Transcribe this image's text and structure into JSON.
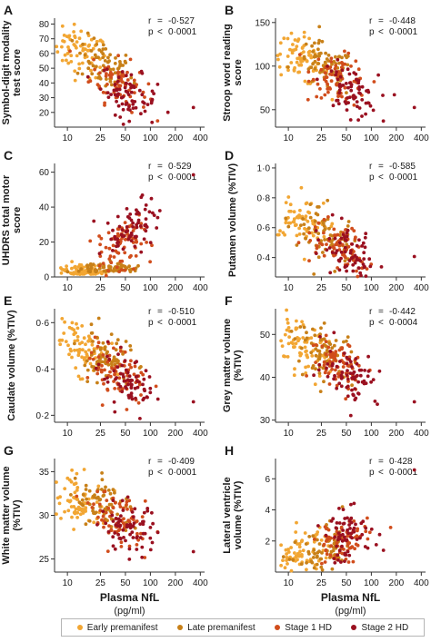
{
  "colors": {
    "early": "#f2a633",
    "late": "#c88018",
    "stage1": "#d14d1c",
    "stage2": "#9a1020"
  },
  "legend": [
    {
      "key": "early",
      "label": "Early premanifest"
    },
    {
      "key": "late",
      "label": "Late premanifest"
    },
    {
      "key": "stage1",
      "label": "Stage 1 HD"
    },
    {
      "key": "stage2",
      "label": "Stage 2 HD"
    }
  ],
  "shared_x": {
    "label": "Plasma NfL",
    "unit": "(pg/ml)",
    "scale": "log",
    "ticks": [
      10,
      25,
      50,
      100,
      200,
      400
    ],
    "tick_labels": [
      "10",
      "25",
      "50",
      "100",
      "200",
      "400"
    ],
    "xlim": [
      7,
      450
    ]
  },
  "chart_data": [
    {
      "panel": "A",
      "type": "scatter",
      "ylabel": "Symbol-digit modality test score",
      "ylim": [
        10,
        84
      ],
      "yticks": [
        20,
        30,
        40,
        50,
        60,
        70,
        80
      ],
      "ytick_labels": [
        "20",
        "30",
        "40",
        "50",
        "60",
        "70",
        "80"
      ],
      "stat_r": "-0·527",
      "stat_p": "0·0001",
      "corr": -0.53,
      "anchors": {
        "early": [
          14,
          62
        ],
        "late": [
          28,
          52
        ],
        "stage1": [
          42,
          40
        ],
        "stage2": [
          55,
          32
        ]
      },
      "clusters": [
        [
          10,
          65
        ],
        [
          20,
          60
        ],
        [
          40,
          45
        ],
        [
          60,
          35
        ],
        [
          100,
          30
        ]
      ]
    },
    {
      "panel": "B",
      "type": "scatter",
      "ylabel": "Stroop word reading score",
      "ylim": [
        30,
        155
      ],
      "yticks": [
        50,
        100,
        150
      ],
      "ytick_labels": [
        "50",
        "100",
        "150"
      ],
      "stat_r": "-0·448",
      "stat_p": "0·0001",
      "corr": -0.45,
      "anchors": {
        "early": [
          14,
          108
        ],
        "late": [
          28,
          98
        ],
        "stage1": [
          42,
          85
        ],
        "stage2": [
          55,
          72
        ]
      },
      "clusters": [
        [
          10,
          110
        ],
        [
          20,
          105
        ],
        [
          40,
          90
        ],
        [
          60,
          75
        ],
        [
          100,
          65
        ]
      ]
    },
    {
      "panel": "C",
      "type": "scatter",
      "ylabel": "UHDRS total motor score",
      "ylim": [
        0,
        65
      ],
      "yticks": [
        0,
        20,
        40,
        60
      ],
      "ytick_labels": [
        "0",
        "20",
        "40",
        "60"
      ],
      "stat_r": "0·529",
      "stat_p": "0·0001",
      "corr": 0.53,
      "anchors": {
        "early": [
          14,
          1.5
        ],
        "late": [
          28,
          3
        ],
        "stage1": [
          45,
          18
        ],
        "stage2": [
          58,
          28
        ]
      },
      "clusters": [
        [
          10,
          1
        ],
        [
          20,
          2
        ],
        [
          40,
          10
        ],
        [
          60,
          25
        ],
        [
          80,
          40
        ]
      ]
    },
    {
      "panel": "D",
      "type": "scatter",
      "ylabel": "Putamen volume (%TIV)",
      "ylim": [
        0.27,
        1.03
      ],
      "yticks": [
        0.4,
        0.6,
        0.8,
        1.0
      ],
      "ytick_labels": [
        "0·4",
        "0·6",
        "0·8",
        "1·0"
      ],
      "stat_r": "-0·585",
      "stat_p": "0·0001",
      "corr": -0.59,
      "anchors": {
        "early": [
          14,
          0.65
        ],
        "late": [
          28,
          0.57
        ],
        "stage1": [
          42,
          0.47
        ],
        "stage2": [
          55,
          0.41
        ]
      },
      "clusters": [
        [
          10,
          0.68
        ],
        [
          20,
          0.62
        ],
        [
          40,
          0.5
        ],
        [
          60,
          0.42
        ],
        [
          100,
          0.38
        ]
      ]
    },
    {
      "panel": "E",
      "type": "scatter",
      "ylabel": "Caudate volume (%TIV)",
      "ylim": [
        0.17,
        0.66
      ],
      "yticks": [
        0.2,
        0.4,
        0.6
      ],
      "ytick_labels": [
        "0·2",
        "0·4",
        "0·6"
      ],
      "stat_r": "-0·510",
      "stat_p": "0·0001",
      "corr": -0.51,
      "anchors": {
        "early": [
          14,
          0.5
        ],
        "late": [
          28,
          0.45
        ],
        "stage1": [
          42,
          0.38
        ],
        "stage2": [
          55,
          0.33
        ]
      },
      "clusters": [
        [
          10,
          0.52
        ],
        [
          20,
          0.47
        ],
        [
          40,
          0.4
        ],
        [
          60,
          0.33
        ],
        [
          100,
          0.3
        ]
      ]
    },
    {
      "panel": "F",
      "type": "scatter",
      "ylabel": "Grey matter volume (%TIV)",
      "ylim": [
        29.5,
        56
      ],
      "yticks": [
        30,
        40,
        50
      ],
      "ytick_labels": [
        "30",
        "40",
        "50"
      ],
      "stat_r": "-0·442",
      "stat_p": "0·0004",
      "corr": -0.44,
      "anchors": {
        "early": [
          14,
          47
        ],
        "late": [
          28,
          46
        ],
        "stage1": [
          42,
          43
        ],
        "stage2": [
          55,
          41
        ]
      },
      "clusters": [
        [
          10,
          48
        ],
        [
          20,
          47
        ],
        [
          40,
          44
        ],
        [
          60,
          41
        ],
        [
          100,
          39
        ]
      ]
    },
    {
      "panel": "G",
      "type": "scatter",
      "ylabel": "White matter volume (%TIV)",
      "ylim": [
        23.5,
        36.5
      ],
      "yticks": [
        25,
        30,
        35
      ],
      "ytick_labels": [
        "25",
        "30",
        "35"
      ],
      "stat_r": "-0·409",
      "stat_p": "0·0001",
      "corr": -0.41,
      "anchors": {
        "early": [
          14,
          31.5
        ],
        "late": [
          28,
          31
        ],
        "stage1": [
          42,
          29.5
        ],
        "stage2": [
          55,
          28.5
        ]
      },
      "clusters": [
        [
          10,
          32
        ],
        [
          20,
          31
        ],
        [
          40,
          30
        ],
        [
          60,
          28.5
        ],
        [
          100,
          27.5
        ]
      ]
    },
    {
      "panel": "H",
      "type": "scatter",
      "ylabel": "Lateral ventricle volume (%TIV)",
      "ylim": [
        0,
        7.3
      ],
      "yticks": [
        2,
        4,
        6
      ],
      "ytick_labels": [
        "2",
        "4",
        "6"
      ],
      "stat_r": "0·428",
      "stat_p": "0·0001",
      "corr": 0.43,
      "anchors": {
        "early": [
          14,
          1.0
        ],
        "late": [
          28,
          1.2
        ],
        "stage1": [
          42,
          1.8
        ],
        "stage2": [
          55,
          2.4
        ]
      },
      "clusters": [
        [
          10,
          0.9
        ],
        [
          20,
          1.1
        ],
        [
          40,
          1.6
        ],
        [
          60,
          2.4
        ],
        [
          100,
          3.0
        ]
      ]
    }
  ]
}
